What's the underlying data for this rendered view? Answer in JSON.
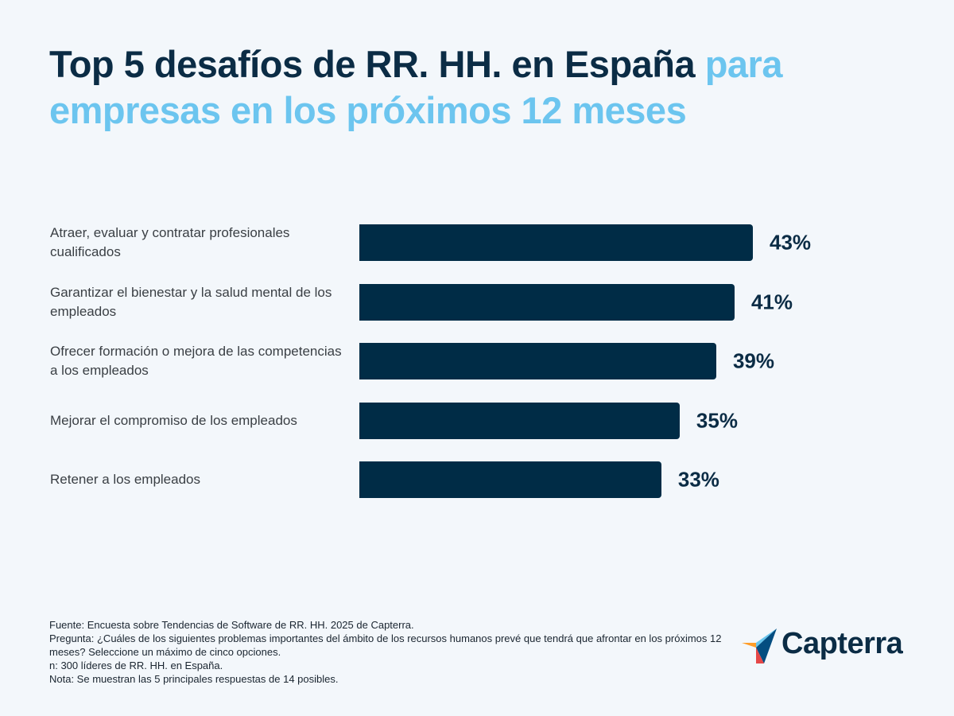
{
  "title": {
    "main": "Top 5 desafíos de RR. HH. en España",
    "accent": "para empresas en los próximos 12 meses"
  },
  "chart_data": {
    "type": "bar",
    "orientation": "horizontal",
    "categories": [
      "Atraer, evaluar y contratar profesionales cualificados",
      "Garantizar el bienestar y la salud mental de los empleados",
      "Ofrecer formación o mejora de las competencias a los empleados",
      "Mejorar el compromiso de los empleados",
      "Retener a los empleados"
    ],
    "values": [
      43,
      41,
      39,
      35,
      33
    ],
    "value_labels": [
      "43%",
      "41%",
      "39%",
      "35%",
      "33%"
    ],
    "unit": "%",
    "xlim": [
      0,
      43
    ],
    "grid": false,
    "legend": "none",
    "bar_color": "#002c46"
  },
  "footer": {
    "lines": [
      "Fuente: Encuesta sobre Tendencias de Software de RR. HH. 2025 de Capterra.",
      "Pregunta: ¿Cuáles de los siguientes problemas importantes del ámbito de los recursos humanos prevé que tendrá que afrontar en los próximos 12 meses? Seleccione un máximo de cinco opciones.",
      "n: 300 líderes de RR. HH. en España.",
      "Nota: Se muestran las 5 principales respuestas de 14 posibles."
    ]
  },
  "logo": {
    "text": "Capterra",
    "colors": [
      "#ff9d28",
      "#68c5ed",
      "#044d80",
      "#e54747"
    ]
  },
  "colors": {
    "background": "#f3f7fb",
    "title": "#0b2c45",
    "accent": "#6cc5ef"
  }
}
